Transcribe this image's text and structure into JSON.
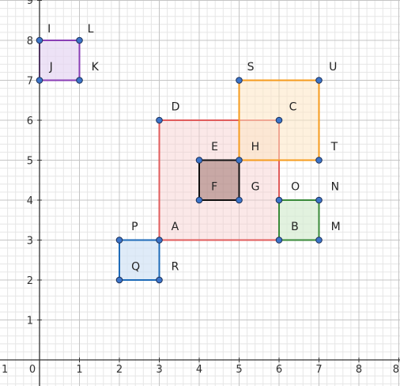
{
  "axes": {
    "x_ticks": [
      "1",
      "0",
      "1",
      "2",
      "3",
      "4",
      "5",
      "6",
      "7",
      "8",
      "8"
    ],
    "y_ticks": [
      "9",
      "8",
      "7",
      "6",
      "5",
      "4",
      "3",
      "2",
      "1"
    ],
    "x_range": [
      -1,
      9
    ],
    "y_range": [
      -0.7,
      9
    ]
  },
  "grid": {
    "minor": 0.2,
    "major": 1
  },
  "shapes": [
    {
      "id": "big-red",
      "corners": [
        [
          3,
          3
        ],
        [
          6,
          3
        ],
        [
          6,
          6
        ],
        [
          3,
          6
        ]
      ],
      "stroke": "#e05c5c",
      "fill": "#f6cccc",
      "fill_opacity": 0.45
    },
    {
      "id": "orange",
      "corners": [
        [
          5,
          5
        ],
        [
          7,
          5
        ],
        [
          7,
          7
        ],
        [
          5,
          7
        ]
      ],
      "stroke": "#f59b1e",
      "fill": "#fde5c2",
      "fill_opacity": 0.55
    },
    {
      "id": "purple",
      "corners": [
        [
          0,
          7
        ],
        [
          1,
          7
        ],
        [
          1,
          8
        ],
        [
          0,
          8
        ]
      ],
      "stroke": "#8a3fb5",
      "fill": "#e6d5f2",
      "fill_opacity": 0.7
    },
    {
      "id": "blue",
      "corners": [
        [
          2,
          2
        ],
        [
          3,
          2
        ],
        [
          3,
          3
        ],
        [
          2,
          3
        ]
      ],
      "stroke": "#1f6bb8",
      "fill": "#d2e3f5",
      "fill_opacity": 0.7
    },
    {
      "id": "green",
      "corners": [
        [
          6,
          3
        ],
        [
          7,
          3
        ],
        [
          7,
          4
        ],
        [
          6,
          4
        ]
      ],
      "stroke": "#3a8a3a",
      "fill": "#d6ecd2",
      "fill_opacity": 0.7
    },
    {
      "id": "black",
      "corners": [
        [
          4,
          4
        ],
        [
          5,
          4
        ],
        [
          5,
          5
        ],
        [
          4,
          5
        ]
      ],
      "stroke": "#111111",
      "fill": "#8a5a55",
      "fill_opacity": 0.45
    }
  ],
  "points": [
    [
      0,
      7
    ],
    [
      1,
      7
    ],
    [
      1,
      8
    ],
    [
      0,
      8
    ],
    [
      3,
      3
    ],
    [
      6,
      3
    ],
    [
      6,
      6
    ],
    [
      3,
      6
    ],
    [
      5,
      5
    ],
    [
      7,
      5
    ],
    [
      7,
      7
    ],
    [
      5,
      7
    ],
    [
      2,
      2
    ],
    [
      3,
      2
    ],
    [
      2,
      3
    ],
    [
      6,
      4
    ],
    [
      7,
      4
    ],
    [
      7,
      3
    ],
    [
      4,
      4
    ],
    [
      5,
      4
    ],
    [
      4,
      5
    ]
  ],
  "point_color": "#3b73c8",
  "labels": [
    {
      "text": "I",
      "x": 0.2,
      "y": 8.3
    },
    {
      "text": "L",
      "x": 1.2,
      "y": 8.3
    },
    {
      "text": "J",
      "x": 0.25,
      "y": 7.35
    },
    {
      "text": "K",
      "x": 1.3,
      "y": 7.35
    },
    {
      "text": "S",
      "x": 5.2,
      "y": 7.35
    },
    {
      "text": "U",
      "x": 7.25,
      "y": 7.35
    },
    {
      "text": "D",
      "x": 3.3,
      "y": 6.35
    },
    {
      "text": "C",
      "x": 6.25,
      "y": 6.35
    },
    {
      "text": "E",
      "x": 4.3,
      "y": 5.35
    },
    {
      "text": "H",
      "x": 5.3,
      "y": 5.35
    },
    {
      "text": "T",
      "x": 7.3,
      "y": 5.35
    },
    {
      "text": "F",
      "x": 4.3,
      "y": 4.35
    },
    {
      "text": "G",
      "x": 5.3,
      "y": 4.35
    },
    {
      "text": "O",
      "x": 6.3,
      "y": 4.35
    },
    {
      "text": "N",
      "x": 7.3,
      "y": 4.35
    },
    {
      "text": "P",
      "x": 2.3,
      "y": 3.35
    },
    {
      "text": "A",
      "x": 3.3,
      "y": 3.35
    },
    {
      "text": "B",
      "x": 6.3,
      "y": 3.35
    },
    {
      "text": "M",
      "x": 7.3,
      "y": 3.35
    },
    {
      "text": "Q",
      "x": 2.3,
      "y": 2.35
    },
    {
      "text": "R",
      "x": 3.3,
      "y": 2.35
    }
  ]
}
